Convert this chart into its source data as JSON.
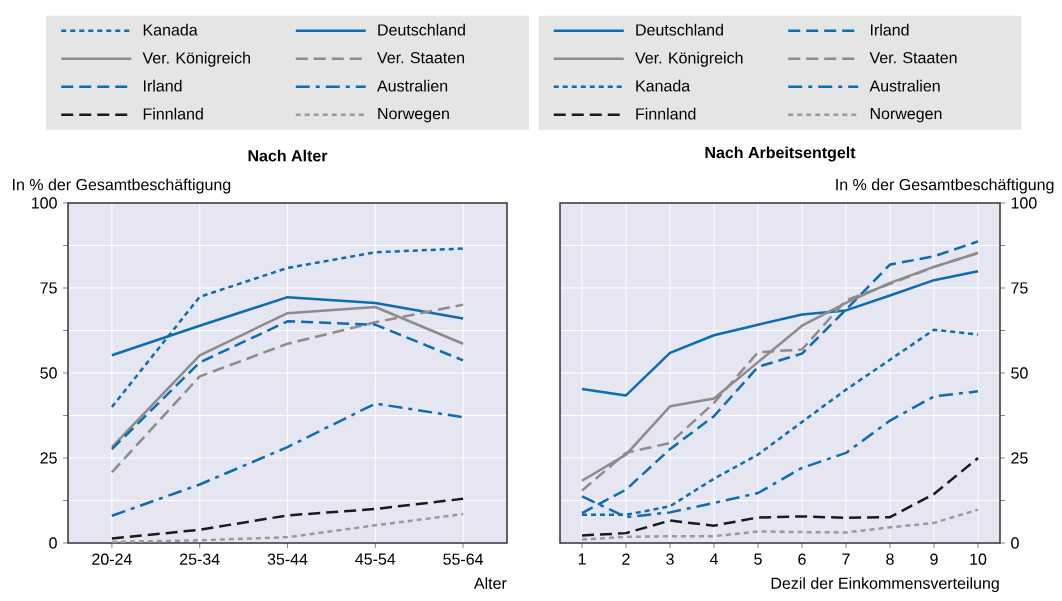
{
  "chart_data": [
    {
      "type": "line",
      "title": "Nach Alter",
      "ylabel": "In % der Gesamtbeschäftigung",
      "xlabel": "Alter",
      "categories": [
        "20-24",
        "25-34",
        "35-44",
        "45-54",
        "55-64"
      ],
      "ylim": [
        0,
        100
      ],
      "yticks": [
        0,
        {
          "value": 12.5,
          "label": null
        },
        25,
        {
          "value": 37.5,
          "label": null
        },
        50,
        {
          "value": 62.5,
          "label": null
        },
        75,
        {
          "value": 87.5,
          "label": null
        },
        100
      ],
      "grid": true,
      "legend": "top",
      "series": [
        {
          "name": "Kanada",
          "color": "#0b6db3",
          "line_style": "dotted",
          "values": [
            40,
            72.4,
            80.9,
            85.5,
            86.6
          ]
        },
        {
          "name": "Deutschland",
          "color": "#0b6db3",
          "line_style": "solid",
          "values": [
            55.2,
            63.9,
            72.3,
            70.6,
            66
          ]
        },
        {
          "name": "Ver. Königreich",
          "color": "#8c8c8c",
          "line_style": "solid",
          "values": [
            28.2,
            55.2,
            67.6,
            69.4,
            58.6
          ]
        },
        {
          "name": "Ver. Staaten",
          "color": "#8c8c8c",
          "line_style": "dashed",
          "values": [
            20.8,
            49,
            58.6,
            64.9,
            70.1
          ]
        },
        {
          "name": "Irland",
          "color": "#0b6db3",
          "line_style": "dashed",
          "values": [
            27.6,
            53.1,
            65.2,
            64.2,
            53.7
          ]
        },
        {
          "name": "Australien",
          "color": "#0b6db3",
          "line_style": "dashdot",
          "values": [
            8,
            17.2,
            28.2,
            41,
            37
          ]
        },
        {
          "name": "Finnland",
          "color": "#1a1a1a",
          "line_style": "dashed",
          "values": [
            1.3,
            3.9,
            8.1,
            10,
            13
          ]
        },
        {
          "name": "Norwegen",
          "color": "#9a9a9a",
          "line_style": "dotted",
          "values": [
            0.3,
            0.8,
            1.7,
            5.2,
            8.5
          ]
        }
      ]
    },
    {
      "type": "line",
      "title": "Nach Arbeitsentgelt",
      "ylabel": "In % der Gesamtbeschäftigung",
      "xlabel": "Dezil der Einkommensverteilung",
      "categories": [
        "1",
        "2",
        "3",
        "4",
        "5",
        "6",
        "7",
        "8",
        "9",
        "10"
      ],
      "ylim": [
        0,
        100
      ],
      "yticks": [
        0,
        {
          "value": 12.5,
          "label": null
        },
        25,
        {
          "value": 37.5,
          "label": null
        },
        50,
        {
          "value": 62.5,
          "label": null
        },
        75,
        {
          "value": 87.5,
          "label": null
        },
        100
      ],
      "grid": true,
      "legend": "top",
      "series": [
        {
          "name": "Deutschland",
          "color": "#0b6db3",
          "line_style": "solid",
          "values": [
            45.3,
            43.4,
            55.9,
            61.1,
            64.2,
            67.2,
            68.4,
            72.8,
            77.3,
            79.9
          ]
        },
        {
          "name": "Irland",
          "color": "#0b6db3",
          "line_style": "dashed",
          "values": [
            8.8,
            15.7,
            27.6,
            37.3,
            51.8,
            55.7,
            68.6,
            81.9,
            84.3,
            88.7
          ]
        },
        {
          "name": "Ver. Königreich",
          "color": "#8c8c8c",
          "line_style": "solid",
          "values": [
            18.3,
            26,
            40.2,
            42.5,
            53.2,
            63.9,
            70.6,
            76.5,
            81.2,
            85.3
          ]
        },
        {
          "name": "Ver. Staaten",
          "color": "#8c8c8c",
          "line_style": "dashed",
          "values": [
            15.4,
            26.5,
            29.4,
            41.2,
            56.1,
            56.9,
            71.4,
            76.2,
            81.2,
            85.3
          ]
        },
        {
          "name": "Kanada",
          "color": "#0b6db3",
          "line_style": "dotted",
          "values": [
            8.3,
            8.3,
            10.8,
            18.9,
            26,
            35.6,
            45.1,
            53.9,
            62.7,
            61.3
          ]
        },
        {
          "name": "Australien",
          "color": "#0b6db3",
          "line_style": "dashdot",
          "values": [
            13.7,
            7.6,
            9,
            11.8,
            14.7,
            22.1,
            26.5,
            36,
            43.1,
            44.6
          ]
        },
        {
          "name": "Finnland",
          "color": "#1a1a1a",
          "line_style": "dashed",
          "values": [
            2.2,
            2.9,
            6.6,
            5.1,
            7.5,
            7.8,
            7.4,
            7.6,
            14.4,
            25
          ]
        },
        {
          "name": "Norwegen",
          "color": "#9a9a9a",
          "line_style": "dotted",
          "values": [
            1,
            1.8,
            2,
            2,
            3.4,
            3.2,
            3.1,
            4.6,
            5.9,
            9.8
          ]
        }
      ]
    }
  ]
}
